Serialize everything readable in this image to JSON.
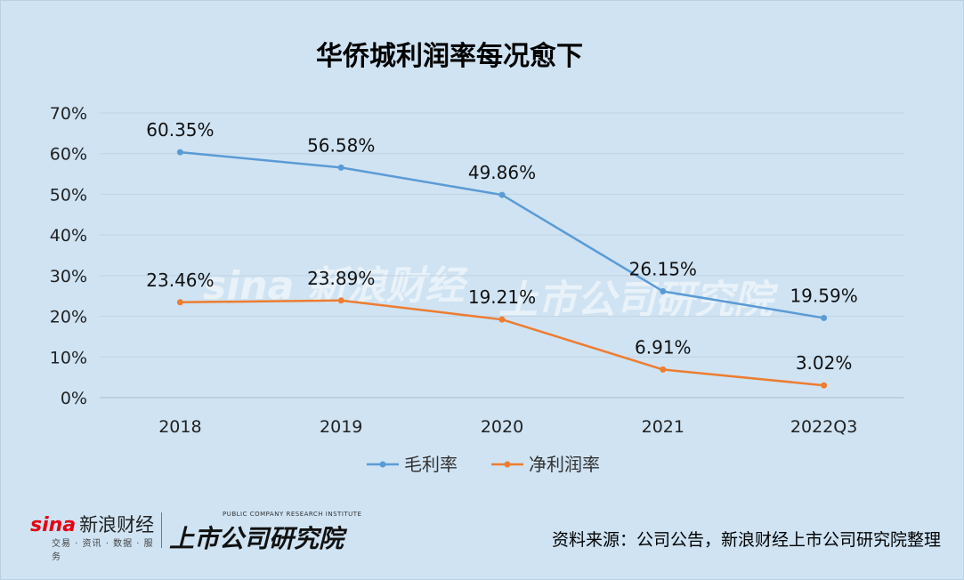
{
  "title": "华侨城利润率每况愈下",
  "source": "资料来源：公司公告，新浪财经上市公司研究院整理",
  "logos": {
    "sina_brand": "sina",
    "sina_name": "新浪财经",
    "sina_sub": "交易 · 资讯 · 数据 · 服务",
    "institute_en": "PUBLIC COMPANY RESEARCH INSTITUTE",
    "institute_zh": "上市公司研究院"
  },
  "chart_data": {
    "type": "line",
    "categories": [
      "2018",
      "2019",
      "2020",
      "2021",
      "2022Q3"
    ],
    "ylim": [
      0,
      70
    ],
    "yticks": [
      0,
      10,
      20,
      30,
      40,
      50,
      60,
      70
    ],
    "ytick_suffix": "%",
    "grid": true,
    "legend_position": "bottom",
    "series": [
      {
        "name": "毛利率",
        "color": "#5b9bd5",
        "values": [
          60.35,
          56.58,
          49.86,
          26.15,
          19.59
        ],
        "labels": [
          "60.35%",
          "56.58%",
          "49.86%",
          "26.15%",
          "19.59%"
        ]
      },
      {
        "name": "净利润率",
        "color": "#ed7d31",
        "values": [
          23.46,
          23.89,
          19.21,
          6.91,
          3.02
        ],
        "labels": [
          "23.46%",
          "23.89%",
          "19.21%",
          "6.91%",
          "3.02%"
        ]
      }
    ]
  }
}
